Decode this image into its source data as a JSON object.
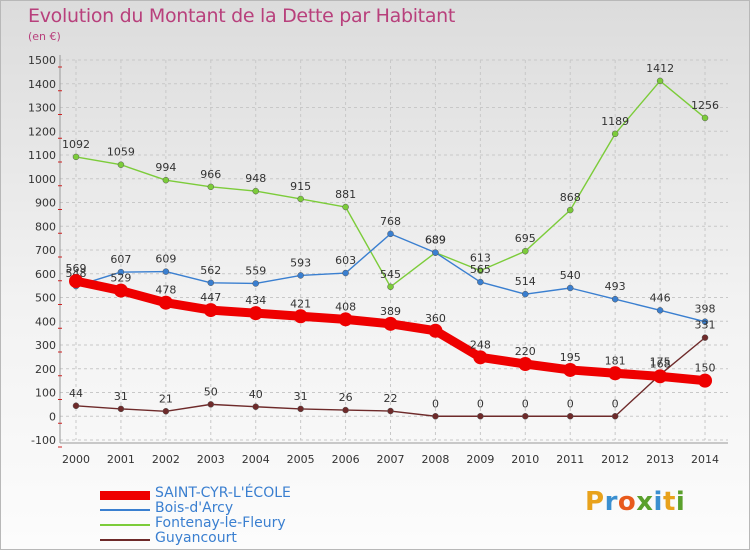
{
  "title": "Evolution du Montant de la Dette par Habitant",
  "unit": "(en €)",
  "logo": "Proxiti",
  "chart_data": {
    "type": "line",
    "title": "Evolution du Montant de la Dette par Habitant",
    "ylabel": "(en €)",
    "x": [
      "2000",
      "2001",
      "2002",
      "2003",
      "2004",
      "2005",
      "2006",
      "2007",
      "2008",
      "2009",
      "2010",
      "2011",
      "2012",
      "2013",
      "2014"
    ],
    "ylim": [
      -100,
      1500
    ],
    "yticks": [
      -100,
      0,
      100,
      200,
      300,
      400,
      500,
      600,
      700,
      800,
      900,
      1000,
      1100,
      1200,
      1300,
      1400,
      1500
    ],
    "grid": true,
    "legend_position": "bottom",
    "series": [
      {
        "name": "SAINT-CYR-L'ÉCOLE",
        "color": "#ee0000",
        "values": [
          569,
          529,
          478,
          447,
          434,
          421,
          408,
          389,
          360,
          248,
          220,
          195,
          181,
          168,
          150
        ]
      },
      {
        "name": "Bois-d'Arcy",
        "color": "#3a7fd0",
        "values": [
          548,
          607,
          609,
          562,
          559,
          593,
          603,
          768,
          689,
          565,
          514,
          540,
          493,
          446,
          398
        ]
      },
      {
        "name": "Fontenay-le-Fleury",
        "color": "#7ccc3a",
        "values": [
          1092,
          1059,
          994,
          966,
          948,
          915,
          881,
          545,
          689,
          613,
          695,
          868,
          1189,
          1412,
          1256
        ]
      },
      {
        "name": "Guyancourt",
        "color": "#6e2a2a",
        "values": [
          44,
          31,
          21,
          50,
          40,
          31,
          26,
          22,
          0,
          0,
          0,
          0,
          0,
          175,
          331
        ]
      }
    ]
  }
}
